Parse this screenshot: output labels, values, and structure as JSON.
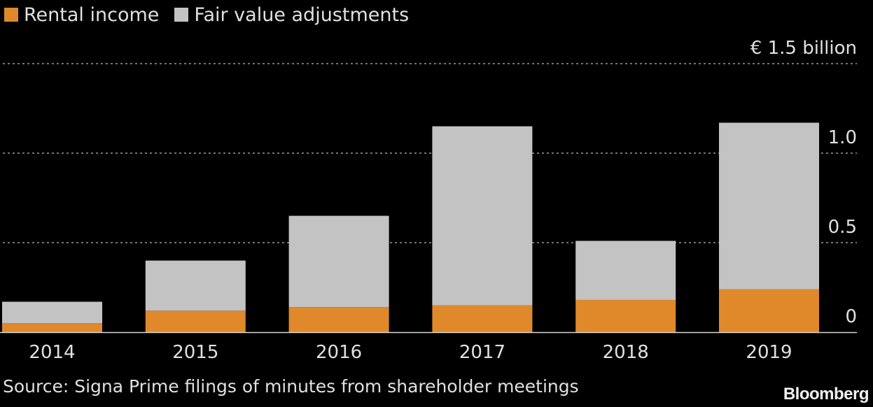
{
  "legend": {
    "items": [
      {
        "label": "Rental income",
        "color": "#E0892B"
      },
      {
        "label": "Fair value adjustments",
        "color": "#C3C3C3"
      }
    ]
  },
  "source": "Source: Signa Prime filings of minutes from shareholder meetings",
  "brand": "Bloomberg",
  "colors": {
    "background": "#000000",
    "gridline": "#9a9a9a",
    "axis": "#d8d8d8",
    "text": "#e0e0e0"
  },
  "chart_data": {
    "type": "bar",
    "stacked": true,
    "categories": [
      "2014",
      "2015",
      "2016",
      "2017",
      "2018",
      "2019"
    ],
    "series": [
      {
        "name": "Rental income",
        "values": [
          0.05,
          0.12,
          0.14,
          0.15,
          0.18,
          0.24
        ]
      },
      {
        "name": "Fair value adjustments",
        "values": [
          0.12,
          0.28,
          0.51,
          1.0,
          0.33,
          0.93
        ]
      }
    ],
    "ylim": [
      0,
      1.5
    ],
    "yticks": [
      {
        "value": 0,
        "label": "0"
      },
      {
        "value": 0.5,
        "label": "0.5"
      },
      {
        "value": 1.0,
        "label": "1.0"
      },
      {
        "value": 1.5,
        "label": "€ 1.5  billion"
      }
    ],
    "grid": true,
    "legend_position": "top-left",
    "xlabel": "",
    "ylabel": ""
  }
}
